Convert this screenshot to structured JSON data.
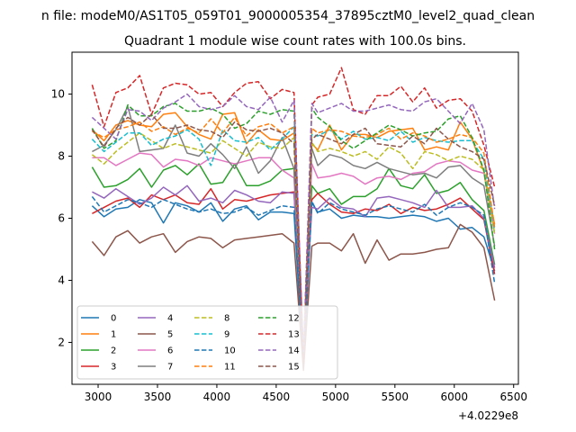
{
  "chart_data": {
    "type": "line",
    "suptitle": "n file: modeM0/AS1T05_059T01_9000005354_37895cztM0_level2_quad_clean",
    "title": "Quadrant 1 module wise count rates with 100.0s bins.",
    "xlabel": "",
    "ylabel": "",
    "x_offset_label": "+4.0229e8",
    "xlim": [
      2780,
      6540
    ],
    "ylim": [
      0.65,
      11.35
    ],
    "xticks": [
      3000,
      3500,
      4000,
      4500,
      5000,
      5500,
      6000,
      6500
    ],
    "yticks": [
      2,
      4,
      6,
      8,
      10
    ],
    "legend": {
      "position": "lower-left",
      "columns": 4
    },
    "x": [
      2950,
      3050,
      3150,
      3250,
      3350,
      3450,
      3550,
      3650,
      3750,
      3850,
      3950,
      4050,
      4150,
      4250,
      4350,
      4450,
      4550,
      4650,
      4730,
      4800,
      4850,
      4950,
      5050,
      5150,
      5250,
      5350,
      5450,
      5550,
      5650,
      5750,
      5850,
      5950,
      6050,
      6150,
      6250,
      6340
    ],
    "series": [
      {
        "name": "0",
        "color": "#1f77b4",
        "dash": "solid",
        "values": [
          6.4,
          6.05,
          6.3,
          6.35,
          6.6,
          6.5,
          5.85,
          6.5,
          6.4,
          6.2,
          6.5,
          5.9,
          6.3,
          6.4,
          5.95,
          6.2,
          6.2,
          6.15,
          1.2,
          6.5,
          6.2,
          6.3,
          6.0,
          6.1,
          6.05,
          6.05,
          6.0,
          6.05,
          6.1,
          6.05,
          5.9,
          6.0,
          5.65,
          5.7,
          5.4,
          4.3
        ]
      },
      {
        "name": "1",
        "color": "#ff7f0e",
        "dash": "solid",
        "values": [
          8.85,
          8.5,
          9.0,
          9.15,
          9.0,
          8.95,
          9.35,
          9.4,
          8.95,
          8.7,
          8.55,
          9.35,
          9.4,
          8.4,
          8.85,
          8.55,
          8.5,
          8.75,
          1.3,
          8.4,
          8.2,
          9.0,
          8.2,
          8.7,
          8.7,
          8.6,
          8.8,
          8.85,
          8.9,
          8.2,
          8.3,
          8.2,
          9.1,
          8.55,
          7.5,
          5.8
        ]
      },
      {
        "name": "2",
        "color": "#2ca02c",
        "dash": "solid",
        "values": [
          7.65,
          7.0,
          7.05,
          7.25,
          7.6,
          7.0,
          7.55,
          7.7,
          7.4,
          7.75,
          7.1,
          7.15,
          7.75,
          7.05,
          7.05,
          7.2,
          7.55,
          7.6,
          1.4,
          7.05,
          6.8,
          6.95,
          6.45,
          6.7,
          6.7,
          6.95,
          7.6,
          7.05,
          6.95,
          7.4,
          6.8,
          6.9,
          7.15,
          6.6,
          6.25,
          4.5
        ]
      },
      {
        "name": "3",
        "color": "#d62728",
        "dash": "solid",
        "values": [
          6.15,
          6.35,
          6.55,
          6.65,
          6.35,
          6.75,
          6.6,
          6.75,
          6.5,
          6.45,
          6.95,
          6.3,
          6.6,
          6.55,
          6.65,
          6.75,
          6.8,
          6.85,
          1.5,
          6.6,
          6.8,
          6.45,
          6.2,
          6.15,
          6.3,
          6.25,
          6.45,
          6.15,
          6.35,
          6.25,
          6.3,
          6.45,
          6.65,
          6.3,
          5.95,
          4.2
        ]
      },
      {
        "name": "4",
        "color": "#9467bd",
        "dash": "solid",
        "values": [
          6.85,
          6.65,
          6.95,
          6.7,
          6.45,
          6.65,
          7.0,
          6.75,
          7.05,
          6.55,
          6.65,
          6.5,
          6.9,
          6.75,
          6.55,
          6.5,
          6.85,
          6.8,
          1.6,
          6.35,
          6.3,
          6.65,
          6.35,
          6.3,
          6.05,
          6.65,
          6.7,
          6.6,
          6.5,
          6.35,
          6.9,
          6.35,
          6.35,
          6.4,
          6.0,
          4.4
        ]
      },
      {
        "name": "5",
        "color": "#8c564b",
        "dash": "solid",
        "values": [
          5.25,
          4.8,
          5.4,
          5.6,
          5.2,
          5.4,
          5.5,
          4.9,
          5.25,
          5.4,
          5.35,
          5.05,
          5.3,
          5.35,
          5.4,
          5.45,
          5.5,
          5.2,
          1.1,
          5.1,
          5.2,
          5.2,
          4.95,
          5.5,
          4.55,
          5.3,
          4.65,
          4.85,
          4.85,
          4.9,
          5.0,
          5.05,
          5.8,
          5.55,
          5.05,
          3.35
        ]
      },
      {
        "name": "6",
        "color": "#e377c2",
        "dash": "solid",
        "values": [
          7.95,
          7.95,
          7.7,
          7.9,
          8.1,
          8.05,
          7.65,
          7.9,
          7.85,
          7.7,
          7.95,
          7.85,
          7.75,
          7.85,
          7.95,
          7.95,
          7.55,
          7.3,
          1.7,
          7.75,
          7.3,
          7.35,
          7.45,
          7.35,
          7.1,
          7.3,
          7.35,
          7.25,
          7.45,
          7.5,
          7.75,
          7.85,
          7.8,
          7.55,
          7.45,
          5.5
        ]
      },
      {
        "name": "7",
        "color": "#7f7f7f",
        "dash": "solid",
        "values": [
          8.15,
          8.35,
          8.85,
          9.6,
          8.15,
          8.2,
          8.25,
          9.0,
          8.1,
          8.0,
          8.4,
          8.05,
          7.6,
          8.3,
          7.45,
          7.85,
          8.6,
          7.6,
          1.5,
          8.25,
          7.7,
          8.05,
          7.95,
          7.7,
          7.6,
          7.8,
          7.6,
          7.5,
          7.4,
          7.45,
          7.3,
          7.65,
          7.7,
          7.3,
          7.05,
          5.1
        ]
      },
      {
        "name": "8",
        "color": "#bcbd22",
        "dash": "dashed",
        "values": [
          8.05,
          7.75,
          8.15,
          8.45,
          8.75,
          8.5,
          8.25,
          8.4,
          8.3,
          8.2,
          8.1,
          8.5,
          8.25,
          8.0,
          8.45,
          8.3,
          8.25,
          8.6,
          1.5,
          8.45,
          8.15,
          8.25,
          8.15,
          8.0,
          8.15,
          7.9,
          8.3,
          8.1,
          7.6,
          8.15,
          8.05,
          7.85,
          8.0,
          7.9,
          7.55,
          5.5
        ]
      },
      {
        "name": "9",
        "color": "#17becf",
        "dash": "dashed",
        "values": [
          8.55,
          8.15,
          8.45,
          8.75,
          8.75,
          8.35,
          8.55,
          8.65,
          8.85,
          8.55,
          7.7,
          8.85,
          8.5,
          8.45,
          8.6,
          8.2,
          8.55,
          8.95,
          1.5,
          8.7,
          8.65,
          8.85,
          8.55,
          8.8,
          8.55,
          8.6,
          8.5,
          8.8,
          8.45,
          8.6,
          8.5,
          8.45,
          8.5,
          8.5,
          7.9,
          5.6
        ]
      },
      {
        "name": "10",
        "color": "#1f77b4",
        "dash": "dashed",
        "values": [
          6.7,
          6.2,
          6.4,
          6.6,
          6.5,
          6.35,
          6.6,
          6.45,
          6.3,
          6.2,
          6.3,
          6.15,
          6.2,
          6.35,
          6.1,
          6.25,
          6.4,
          6.35,
          1.4,
          6.55,
          6.15,
          6.5,
          6.3,
          6.2,
          6.1,
          6.3,
          6.4,
          6.3,
          6.2,
          6.45,
          6.1,
          6.35,
          6.5,
          6.35,
          6.1,
          3.9
        ]
      },
      {
        "name": "11",
        "color": "#ff7f0e",
        "dash": "dashed",
        "values": [
          8.8,
          8.6,
          8.85,
          8.95,
          9.1,
          8.8,
          8.95,
          8.7,
          8.9,
          8.75,
          9.2,
          8.75,
          9.25,
          8.65,
          8.95,
          9.05,
          8.75,
          8.95,
          1.6,
          8.9,
          8.75,
          8.85,
          8.8,
          8.65,
          8.6,
          8.7,
          8.9,
          8.55,
          8.75,
          8.65,
          8.45,
          8.55,
          8.7,
          8.6,
          8.1,
          5.7
        ]
      },
      {
        "name": "12",
        "color": "#2ca02c",
        "dash": "dashed",
        "values": [
          8.9,
          8.25,
          8.5,
          9.65,
          9.3,
          9.3,
          9.6,
          9.7,
          9.45,
          9.45,
          9.55,
          9.35,
          8.9,
          9.05,
          9.45,
          9.35,
          9.5,
          9.45,
          1.5,
          9.55,
          9.25,
          8.95,
          8.5,
          8.25,
          8.5,
          8.75,
          9.0,
          8.85,
          8.65,
          8.75,
          8.8,
          9.2,
          9.3,
          8.6,
          7.55,
          5.0
        ]
      },
      {
        "name": "13",
        "color": "#d62728",
        "dash": "dashed",
        "values": [
          10.3,
          8.95,
          10.05,
          10.2,
          10.6,
          9.35,
          10.2,
          10.35,
          10.3,
          10.0,
          10.05,
          9.6,
          10.05,
          10.35,
          10.4,
          9.85,
          10.15,
          10.05,
          1.3,
          9.65,
          9.9,
          10.0,
          10.85,
          9.5,
          9.35,
          9.95,
          9.95,
          10.25,
          9.75,
          10.2,
          9.55,
          9.8,
          9.85,
          9.45,
          8.35,
          7.0
        ]
      },
      {
        "name": "14",
        "color": "#9467bd",
        "dash": "dashed",
        "values": [
          9.25,
          8.9,
          8.55,
          9.5,
          9.45,
          9.15,
          9.55,
          9.75,
          10.0,
          9.6,
          9.5,
          9.6,
          9.95,
          9.6,
          9.5,
          9.9,
          9.1,
          9.8,
          1.6,
          9.7,
          9.4,
          9.55,
          9.7,
          9.45,
          9.45,
          9.55,
          9.65,
          9.5,
          9.45,
          9.75,
          9.85,
          9.45,
          9.05,
          9.7,
          8.85,
          6.3
        ]
      },
      {
        "name": "15",
        "color": "#8c564b",
        "dash": "dashed",
        "values": [
          8.85,
          8.3,
          8.9,
          9.25,
          9.0,
          9.35,
          8.9,
          8.9,
          9.0,
          8.85,
          8.8,
          8.6,
          9.1,
          8.85,
          8.8,
          8.9,
          8.75,
          8.4,
          1.2,
          8.55,
          8.7,
          8.55,
          8.4,
          8.7,
          8.9,
          8.4,
          8.35,
          8.3,
          8.65,
          8.4,
          8.9,
          8.55,
          8.3,
          8.15,
          7.9,
          6.4
        ]
      }
    ]
  }
}
